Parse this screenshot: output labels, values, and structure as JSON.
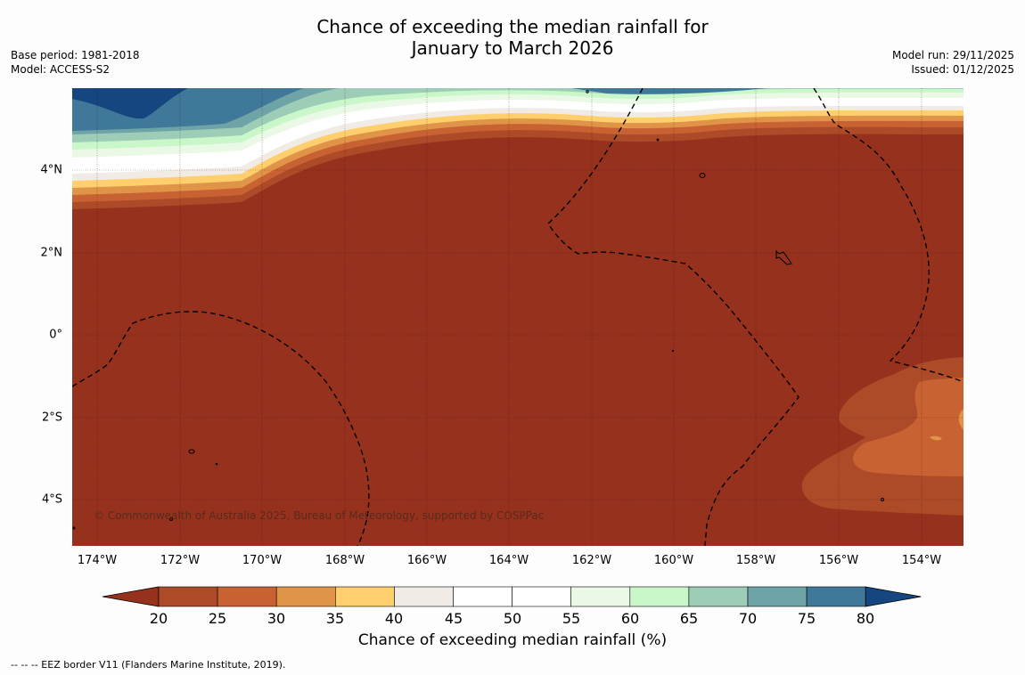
{
  "title": {
    "line1": "Chance of exceeding the median rainfall for",
    "line2": "January to March 2026"
  },
  "meta": {
    "base_period": "Base period: 1981-2018",
    "model": "Model: ACCESS-S2",
    "model_run": "Model run: 29/11/2025",
    "issued": "Issued: 01/12/2025"
  },
  "map": {
    "latitude_labels": [
      "4°N",
      "2°N",
      "0°",
      "2°S",
      "4°S"
    ],
    "longitude_labels": [
      "174°W",
      "172°W",
      "170°W",
      "168°W",
      "166°W",
      "164°W",
      "162°W",
      "160°W",
      "158°W",
      "156°W",
      "154°W"
    ],
    "copyright": "© Commonwealth of Australia 2025, Bureau of Meteorology, supported by COSPPac"
  },
  "colorbar": {
    "ticks": [
      "20",
      "25",
      "30",
      "35",
      "40",
      "45",
      "50",
      "55",
      "60",
      "65",
      "70",
      "75",
      "80"
    ],
    "colors": [
      "#96311e",
      "#ad4a28",
      "#c96233",
      "#e09448",
      "#ffcf6e",
      "#f0ebe4",
      "#ffffff",
      "#ffffff",
      "#eaf8e6",
      "#caf7c9",
      "#9dcdb7",
      "#6ea3a7",
      "#3f7898",
      "#15467f"
    ],
    "label": "Chance of exceeding median rainfall (%)"
  },
  "footer": {
    "legend": "--  --  -- EEZ border V11 (Flanders Marine Institute, 2019)."
  }
}
